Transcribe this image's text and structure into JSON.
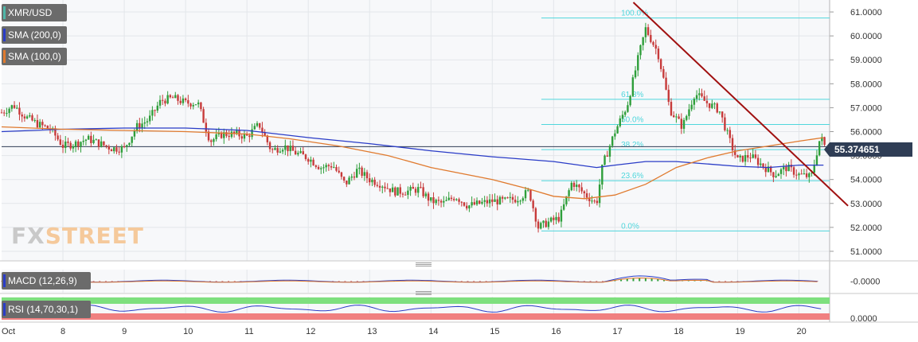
{
  "symbol": "XMR/USD",
  "logo": {
    "fx": "FX",
    "street": "STREET"
  },
  "indicators": [
    {
      "label": "SMA (200,0)",
      "color": "#2a3cc7"
    },
    {
      "label": "SMA (100,0)",
      "color": "#e07a2e"
    }
  ],
  "last_price_label": "55.374651",
  "macd": {
    "label": "MACD (12,26,9)",
    "scale_label": "-0.0000"
  },
  "rsi": {
    "label": "RSI (14,70,30,1)",
    "scale_label": "0.0000"
  },
  "colors": {
    "grid": "#e3e6ea",
    "fib": "#4fd6dc",
    "trend": "#a01010",
    "up": "#2e9e3a",
    "down": "#c73a3a",
    "sma200": "#2a3cc7",
    "sma100": "#e07a2e",
    "price_line": "#2f3d55",
    "rsi_upper": "#7ee07e",
    "rsi_lower": "#f08080"
  },
  "chart_data": {
    "type": "candlestick",
    "title": "XMR/USD",
    "x_tick_labels": [
      "Oct",
      "8",
      "9",
      "10",
      "11",
      "12",
      "13",
      "14",
      "15",
      "16",
      "17",
      "18",
      "19",
      "20"
    ],
    "x_ticks": [
      7,
      8,
      9,
      10,
      11,
      12,
      13,
      14,
      15,
      16,
      17,
      18,
      19,
      20
    ],
    "x_range": [
      7.0,
      20.5
    ],
    "y_range": [
      50.6,
      61.5
    ],
    "y_tick_labels": [
      "51.0000",
      "52.0000",
      "53.0000",
      "54.0000",
      "55.0000",
      "56.0000",
      "57.0000",
      "58.0000",
      "59.0000",
      "60.0000",
      "61.0000"
    ],
    "y_ticks": [
      51,
      52,
      53,
      54,
      55,
      56,
      57,
      58,
      59,
      60,
      61
    ],
    "grid": true,
    "price_path": [
      [
        7.0,
        56.8
      ],
      [
        7.2,
        57.1
      ],
      [
        7.4,
        56.6
      ],
      [
        7.6,
        56.3
      ],
      [
        7.8,
        56.1
      ],
      [
        8.0,
        55.4
      ],
      [
        8.2,
        55.5
      ],
      [
        8.4,
        55.7
      ],
      [
        8.6,
        55.5
      ],
      [
        8.8,
        55.3
      ],
      [
        9.0,
        55.3
      ],
      [
        9.2,
        56.2
      ],
      [
        9.4,
        56.5
      ],
      [
        9.6,
        57.3
      ],
      [
        9.8,
        57.4
      ],
      [
        10.0,
        57.2
      ],
      [
        10.2,
        57.2
      ],
      [
        10.4,
        55.6
      ],
      [
        10.6,
        55.9
      ],
      [
        10.8,
        55.9
      ],
      [
        11.0,
        55.8
      ],
      [
        11.2,
        56.3
      ],
      [
        11.4,
        55.2
      ],
      [
        11.6,
        55.4
      ],
      [
        11.8,
        55.1
      ],
      [
        12.0,
        54.9
      ],
      [
        12.2,
        54.5
      ],
      [
        12.4,
        54.6
      ],
      [
        12.6,
        53.8
      ],
      [
        12.8,
        54.4
      ],
      [
        13.0,
        54.0
      ],
      [
        13.2,
        53.8
      ],
      [
        13.4,
        53.5
      ],
      [
        13.6,
        53.5
      ],
      [
        13.8,
        53.6
      ],
      [
        14.0,
        53.1
      ],
      [
        14.2,
        53.0
      ],
      [
        14.4,
        53.3
      ],
      [
        14.6,
        52.9
      ],
      [
        14.8,
        53.0
      ],
      [
        15.0,
        53.1
      ],
      [
        15.2,
        53.1
      ],
      [
        15.4,
        53.2
      ],
      [
        15.6,
        53.5
      ],
      [
        15.75,
        52.0
      ],
      [
        15.9,
        52.2
      ],
      [
        16.1,
        52.4
      ],
      [
        16.3,
        53.9
      ],
      [
        16.5,
        53.4
      ],
      [
        16.7,
        53.0
      ],
      [
        16.8,
        54.6
      ],
      [
        17.0,
        56.0
      ],
      [
        17.2,
        57.1
      ],
      [
        17.4,
        59.3
      ],
      [
        17.5,
        60.3
      ],
      [
        17.7,
        59.3
      ],
      [
        17.9,
        56.9
      ],
      [
        18.1,
        56.2
      ],
      [
        18.3,
        57.6
      ],
      [
        18.5,
        57.2
      ],
      [
        18.7,
        56.9
      ],
      [
        18.9,
        55.4
      ],
      [
        19.0,
        54.8
      ],
      [
        19.2,
        55.0
      ],
      [
        19.4,
        54.6
      ],
      [
        19.6,
        54.2
      ],
      [
        19.8,
        54.5
      ],
      [
        20.0,
        54.2
      ],
      [
        20.2,
        54.1
      ],
      [
        20.35,
        55.8
      ],
      [
        20.42,
        55.4
      ]
    ],
    "series": [
      {
        "name": "SMA (200,0)",
        "points": [
          [
            7.0,
            56.0
          ],
          [
            8.0,
            56.1
          ],
          [
            9.0,
            56.15
          ],
          [
            10.0,
            56.15
          ],
          [
            11.0,
            56.05
          ],
          [
            12.0,
            55.75
          ],
          [
            13.0,
            55.5
          ],
          [
            14.0,
            55.2
          ],
          [
            15.0,
            54.95
          ],
          [
            16.0,
            54.75
          ],
          [
            16.7,
            54.5
          ],
          [
            17.0,
            54.6
          ],
          [
            17.5,
            54.75
          ],
          [
            18.0,
            54.75
          ],
          [
            18.5,
            54.65
          ],
          [
            19.0,
            54.55
          ],
          [
            19.5,
            54.5
          ],
          [
            20.0,
            54.6
          ],
          [
            20.4,
            54.6
          ]
        ]
      },
      {
        "name": "SMA (100,0)",
        "points": [
          [
            7.0,
            56.2
          ],
          [
            8.0,
            56.1
          ],
          [
            9.0,
            56.05
          ],
          [
            10.0,
            56.0
          ],
          [
            11.0,
            55.9
          ],
          [
            11.7,
            55.7
          ],
          [
            12.5,
            55.4
          ],
          [
            13.3,
            55.0
          ],
          [
            14.0,
            54.5
          ],
          [
            15.0,
            54.0
          ],
          [
            15.6,
            53.6
          ],
          [
            16.0,
            53.3
          ],
          [
            16.5,
            53.2
          ],
          [
            17.0,
            53.35
          ],
          [
            17.5,
            53.8
          ],
          [
            18.0,
            54.5
          ],
          [
            18.5,
            54.9
          ],
          [
            19.0,
            55.2
          ],
          [
            19.5,
            55.4
          ],
          [
            20.0,
            55.6
          ],
          [
            20.4,
            55.75
          ]
        ]
      }
    ],
    "fibonacci": [
      {
        "label": "100.0%",
        "value": 60.75
      },
      {
        "label": "61.8%",
        "value": 57.35
      },
      {
        "label": "50.0%",
        "value": 56.3
      },
      {
        "label": "38.2%",
        "value": 55.25
      },
      {
        "label": "23.6%",
        "value": 53.95
      },
      {
        "label": "0.0%",
        "value": 51.85
      }
    ],
    "trendline": [
      [
        17.3,
        61.4
      ],
      [
        20.8,
        52.9
      ]
    ],
    "current_price": 55.374651
  }
}
